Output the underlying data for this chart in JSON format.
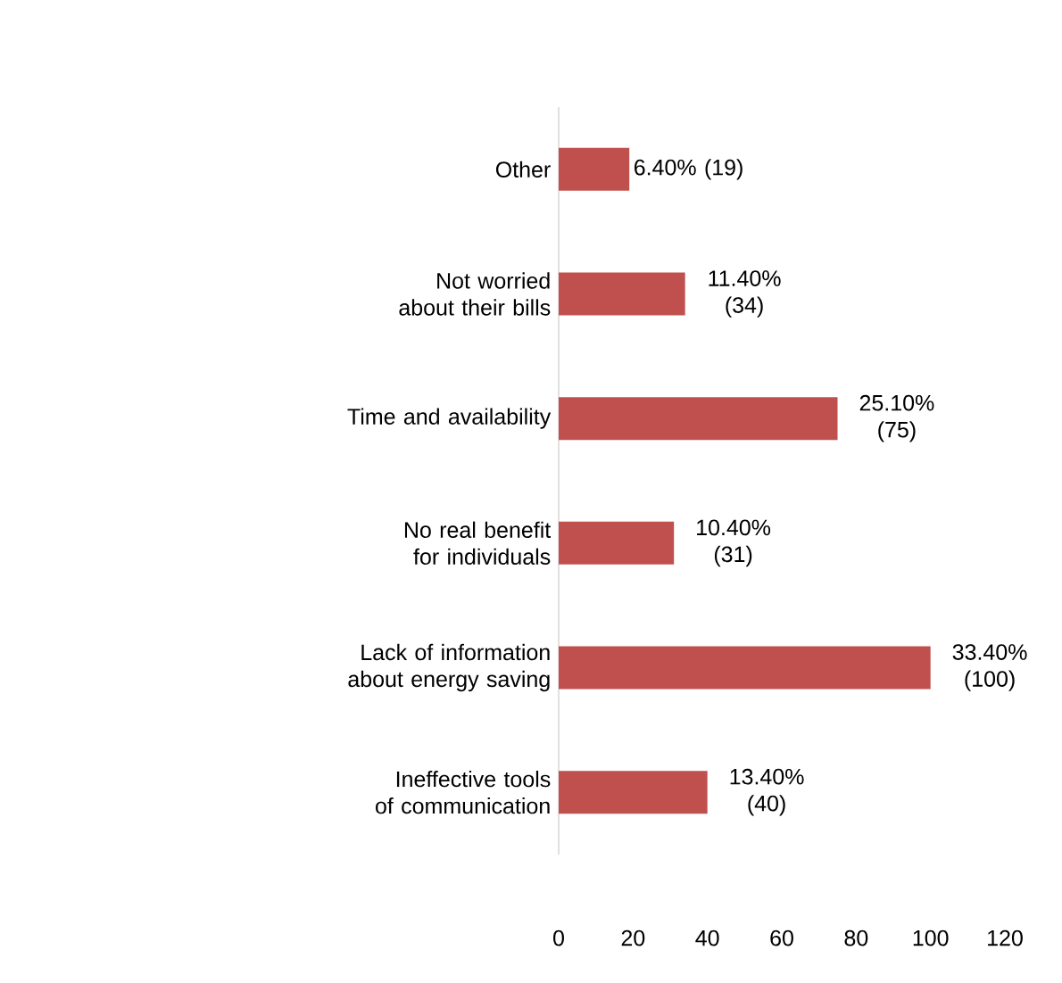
{
  "chart_data": {
    "type": "bar",
    "orientation": "horizontal",
    "categories": [
      "Other",
      "Not worried about their bills",
      "Time and availability",
      "No real benefit for individuals",
      "Lack of information about energy saving",
      "Ineffective tools of communication"
    ],
    "values": [
      19,
      34,
      75,
      31,
      100,
      40
    ],
    "value_labels": [
      "6.40% (19)",
      "11.40% (34)",
      "25.10% (75)",
      "10.40% (31)",
      "33.40% (100)",
      "13.40% (40)"
    ],
    "color": "#c0504d",
    "xlim": [
      0,
      120
    ],
    "xticks": [
      0,
      20,
      40,
      60,
      80,
      100,
      120
    ],
    "grid": false
  }
}
